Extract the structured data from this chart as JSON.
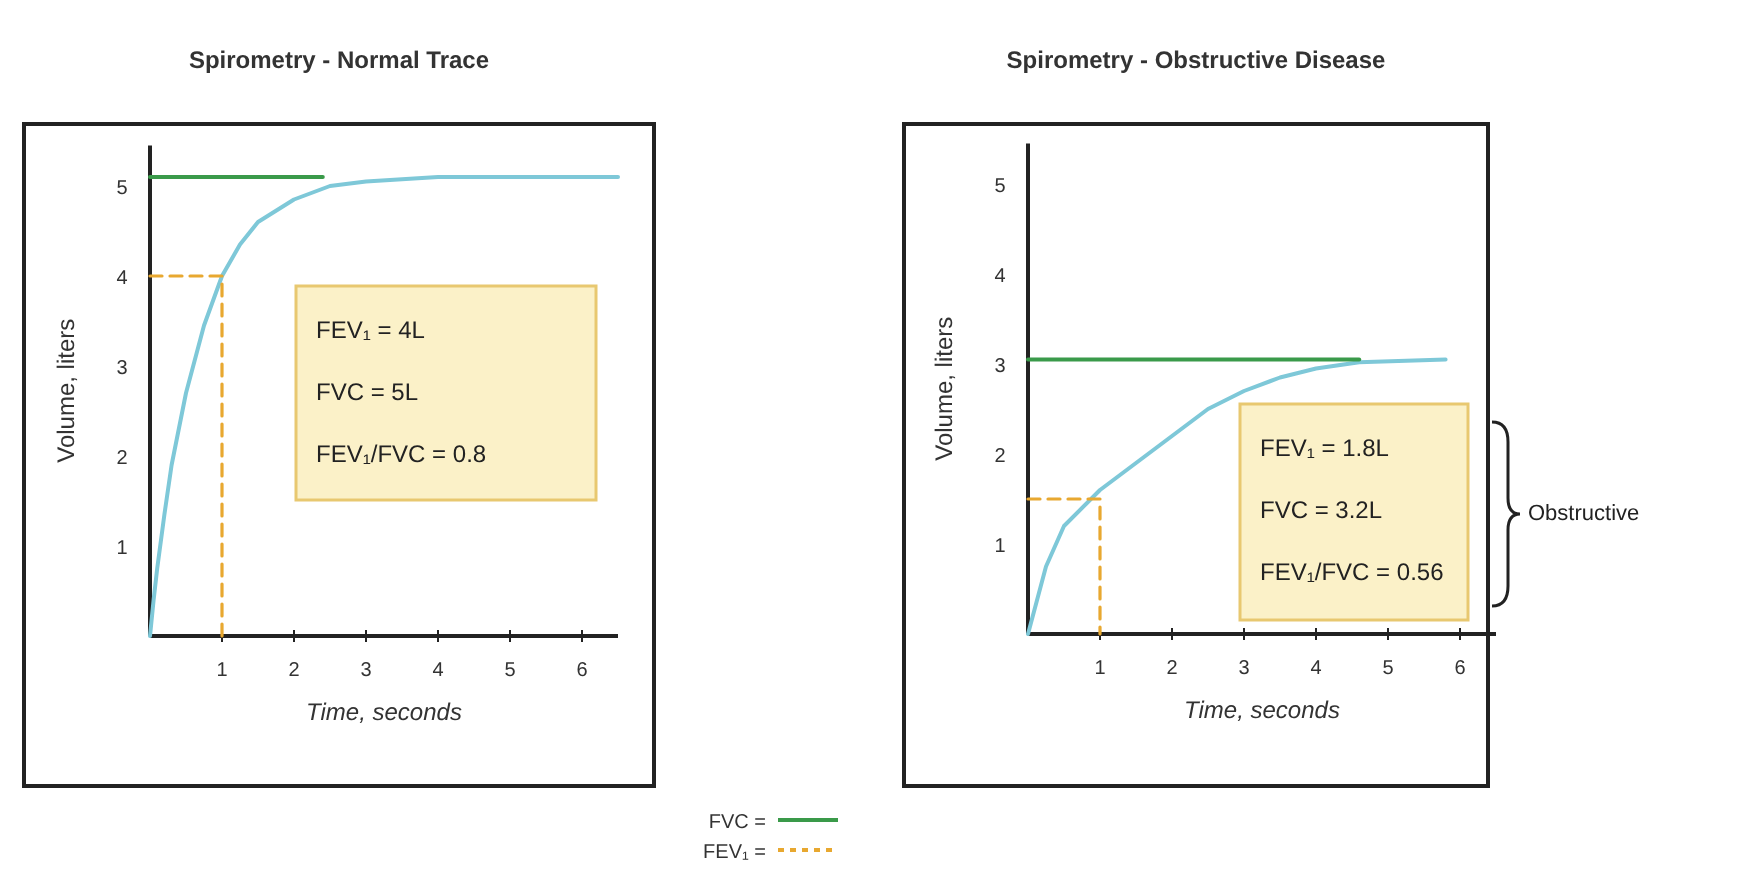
{
  "chart_data": [
    {
      "type": "line",
      "title": "Spirometry - Normal Trace",
      "xlabel": "Time, seconds",
      "ylabel": "Volume, liters",
      "xlim": [
        0,
        6.5
      ],
      "ylim": [
        0,
        5.45
      ],
      "xticks": [
        1,
        2,
        3,
        4,
        5,
        6
      ],
      "yticks": [
        1,
        2,
        3,
        4,
        5
      ],
      "grid": false,
      "legend": "bottom",
      "marker": "none",
      "series": [
        {
          "color": "#7ec8d8",
          "x": [
            0,
            0.05,
            0.1,
            0.2,
            0.3,
            0.5,
            0.75,
            1,
            1.25,
            1.5,
            2,
            2.5,
            3,
            4,
            5,
            6.5
          ],
          "values": [
            0,
            0.4,
            0.75,
            1.35,
            1.9,
            2.7,
            3.45,
            4,
            4.35,
            4.6,
            4.85,
            5,
            5.05,
            5.1,
            5.1,
            5.1
          ]
        },
        {
          "name": "FVC =",
          "color": "#3a9a4a",
          "x": [
            0,
            2.4
          ],
          "values": [
            5.1,
            5.1
          ]
        },
        {
          "name": "FEV₁ =",
          "color": "#e8a830",
          "line_style": "dashed",
          "x": [
            0,
            1,
            1
          ],
          "values": [
            4,
            4,
            0
          ]
        }
      ],
      "annotations": [
        "FEV₁ = 4L",
        "FVC = 5L",
        "FEV₁/FVC = 0.8"
      ]
    },
    {
      "type": "line",
      "title": "Spirometry - Obstructive Disease",
      "xlabel": "Time, seconds",
      "ylabel": "Volume, liters",
      "xlim": [
        0,
        6.5
      ],
      "ylim": [
        0,
        5.45
      ],
      "xticks": [
        1,
        2,
        3,
        4,
        5,
        6
      ],
      "yticks": [
        1,
        2,
        3,
        4,
        5
      ],
      "grid": false,
      "legend": false,
      "marker": "none",
      "series": [
        {
          "color": "#7ec8d8",
          "x": [
            0,
            0.25,
            0.5,
            1,
            1.5,
            2,
            2.5,
            3,
            3.5,
            4,
            4.6,
            5.8
          ],
          "values": [
            0,
            0.75,
            1.2,
            1.6,
            1.9,
            2.2,
            2.5,
            2.7,
            2.85,
            2.95,
            3.02,
            3.05
          ]
        },
        {
          "color": "#3a9a4a",
          "x": [
            0,
            4.6
          ],
          "values": [
            3.05,
            3.05
          ]
        },
        {
          "color": "#e8a830",
          "line_style": "dashed",
          "x": [
            0,
            1,
            1
          ],
          "values": [
            1.5,
            1.5,
            0
          ]
        }
      ],
      "annotations": [
        "FEV₁ = 1.8L",
        "FVC = 3.2L",
        "FEV₁/FVC = 0.56",
        "Obstructive"
      ]
    }
  ]
}
